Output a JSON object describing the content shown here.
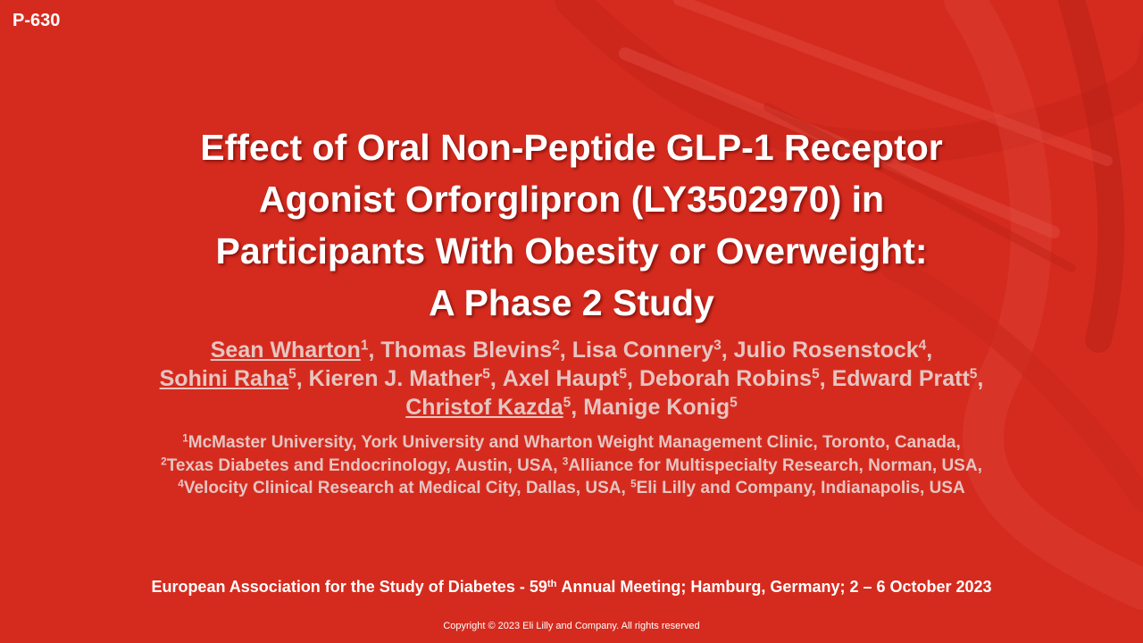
{
  "poster_id": "P-630",
  "title_lines": [
    "Effect of Oral Non-Peptide GLP-1 Receptor",
    "Agonist Orforglipron (LY3502970) in",
    "Participants With Obesity or Overweight:",
    "A Phase 2 Study"
  ],
  "author_lines": [
    [
      {
        "name": "Sean Wharton",
        "sup": "1",
        "sep": ","
      },
      {
        "name": "Thomas Blevins",
        "sup": "2",
        "sep": ","
      },
      {
        "name": "Lisa Connery",
        "sup": "3",
        "sep": ","
      },
      {
        "name": "Julio Rosenstock",
        "sup": "4",
        "sep": ","
      }
    ],
    [
      {
        "name": "Sohini Raha",
        "sup": "5",
        "sep": ","
      },
      {
        "name": "Kieren J. Mather",
        "sup": "5",
        "sep": ","
      },
      {
        "name": "Axel Haupt",
        "sup": "5",
        "sep": ","
      },
      {
        "name": "Deborah Robins",
        "sup": "5",
        "sep": ","
      },
      {
        "name": "Edward Pratt",
        "sup": "5",
        "sep": ","
      }
    ],
    [
      {
        "name": "Christof Kazda",
        "sup": "5",
        "sep": ","
      },
      {
        "name": "Manige Konig",
        "sup": "5"
      }
    ]
  ],
  "affiliation_lines": [
    [
      {
        "sup": "1",
        "text": "McMaster University, York University and Wharton Weight Management Clinic, Toronto, Canada,"
      }
    ],
    [
      {
        "sup": "2",
        "text": "Texas Diabetes and Endocrinology, Austin, USA,"
      },
      {
        "sup": "3",
        "text": "Alliance for Multispecialty Research, Norman, USA,"
      }
    ],
    [
      {
        "sup": "4",
        "text": "Velocity Clinical Research at Medical City, Dallas, USA,"
      },
      {
        "sup": "5",
        "text": "Eli Lilly and Company, Indianapolis, USA"
      }
    ]
  ],
  "meeting": {
    "before": "European Association for the Study of Diabetes - 59",
    "sup": "th",
    "after": "Annual Meeting; Hamburg, Germany; 2 – 6 October 2023"
  },
  "copyright": "Copyright © 2023 Eli Lilly and Company. All rights reserved"
}
